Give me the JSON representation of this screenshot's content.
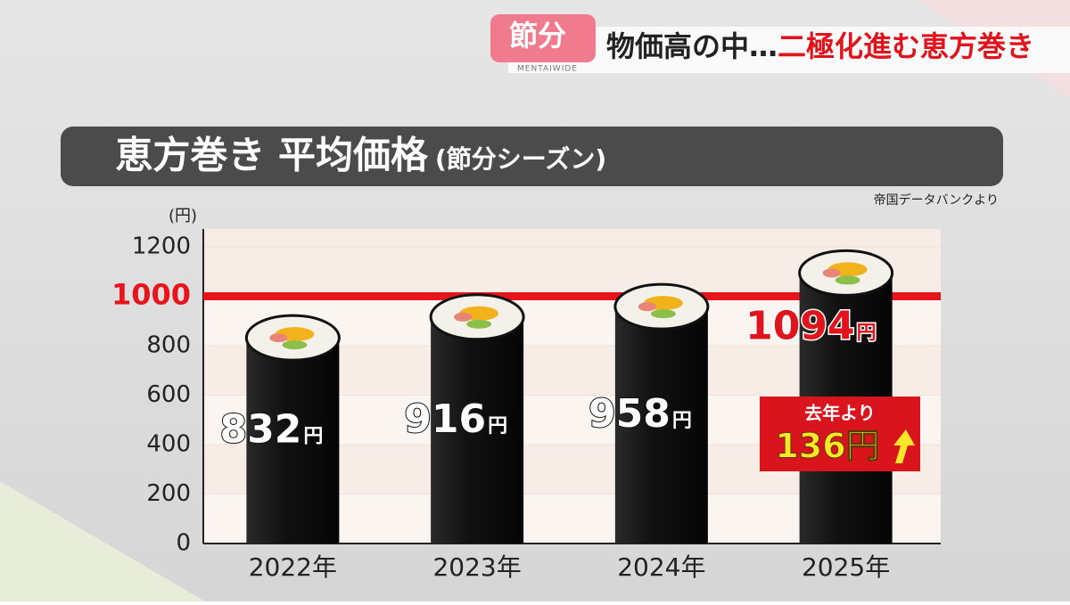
{
  "header": {
    "badge": "節分",
    "brand": "MENTAIWIDE",
    "headline_1": "物価高の中…",
    "headline_2": "二極化進む恵方巻き"
  },
  "chart_data": {
    "type": "bar",
    "title": "恵方巻き 平均価格",
    "subtitle": "(節分シーズン)",
    "source": "帝国データバンクより",
    "y_label": "(円)",
    "categories": [
      "2022年",
      "2023年",
      "2024年",
      "2025年"
    ],
    "values": [
      832,
      916,
      958,
      1094
    ],
    "unit": "円",
    "color": "#161616",
    "ylim": [
      0,
      1200
    ],
    "yticks": [
      0,
      200,
      400,
      600,
      800,
      1000,
      1200
    ],
    "grid": true,
    "reference_line": {
      "value": 1000,
      "color": "#e8141c"
    },
    "annotation": {
      "line_1": "去年より",
      "line_2": "136円"
    }
  }
}
